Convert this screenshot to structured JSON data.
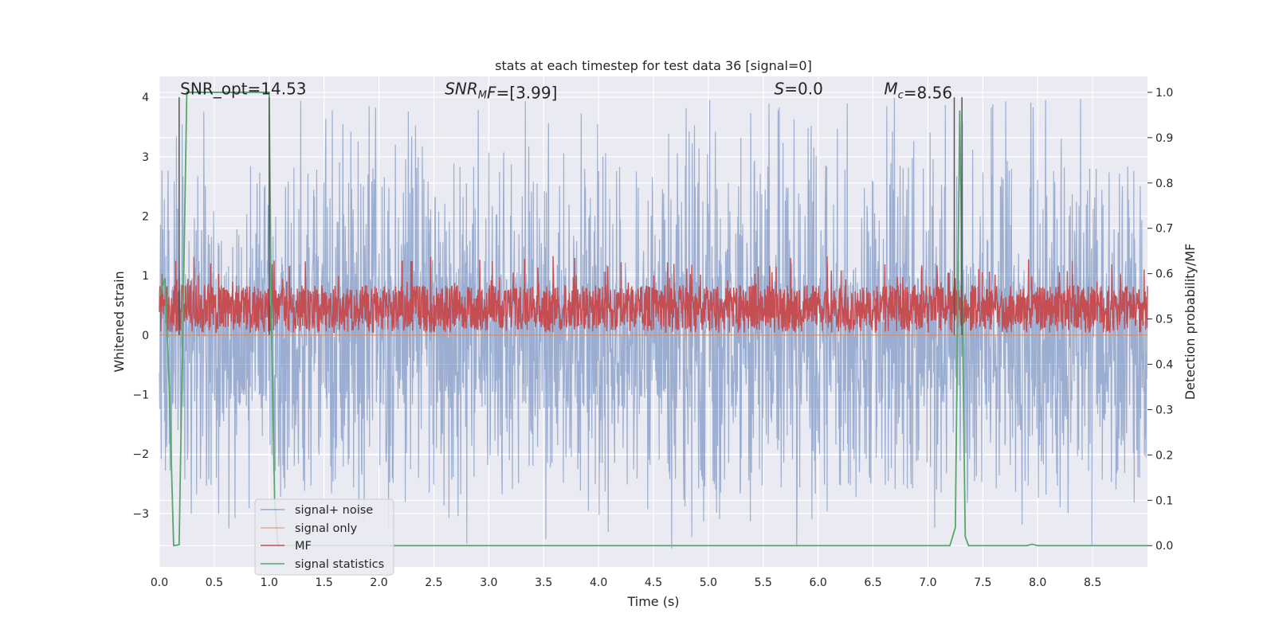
{
  "chart_data": {
    "type": "line",
    "title": "stats at each timestep for test data 36 [signal=0]",
    "xlabel": "Time (s)",
    "ylabel": "Whitened strain",
    "y2label": "Detection probability/MF",
    "xlim": [
      0.0,
      9.0
    ],
    "ylim": [
      -3.9,
      4.35
    ],
    "y2lim": [
      -0.047,
      1.035
    ],
    "xticks": [
      "0.0",
      "0.5",
      "1.0",
      "1.5",
      "2.0",
      "2.5",
      "3.0",
      "3.5",
      "4.0",
      "4.5",
      "5.0",
      "5.5",
      "6.0",
      "6.5",
      "7.0",
      "7.5",
      "8.0",
      "8.5"
    ],
    "yticks": [
      "−3",
      "−2",
      "−1",
      "0",
      "1",
      "2",
      "3",
      "4"
    ],
    "y2ticks": [
      "0.0",
      "0.1",
      "0.2",
      "0.3",
      "0.4",
      "0.5",
      "0.6",
      "0.7",
      "0.8",
      "0.9",
      "1.0"
    ],
    "grid": true,
    "legend_position": "lower-left",
    "annotations": [
      {
        "text": "SNR_opt=14.53",
        "x": 0.19,
        "y": 4.1
      },
      {
        "text": "=[3.99]",
        "prefix": "SNR",
        "sub": "M",
        "mid": "F",
        "x": 2.6,
        "y": 4.1
      },
      {
        "text": "=0.0",
        "prefix": "S",
        "x": 5.6,
        "y": 4.1
      },
      {
        "text": "=8.56",
        "prefix": "M",
        "sub": "c",
        "x": 6.6,
        "y": 4.1
      }
    ],
    "vlines": [
      {
        "x": 0.18,
        "ymin": 0.0,
        "ymax": 4.0
      },
      {
        "x": 1.0,
        "ymin": 0.0,
        "ymax": 4.0
      },
      {
        "x": 7.24,
        "ymin": 0.0,
        "ymax": 4.0
      },
      {
        "x": 7.31,
        "ymin": 0.0,
        "ymax": 4.0
      }
    ],
    "series": [
      {
        "name": "signal+ noise",
        "color": "#4c72b0",
        "axis": "left",
        "band": {
          "low": -1.3,
          "high": 1.2,
          "spike_max": 4.0,
          "spike_min": -3.6
        }
      },
      {
        "name": "signal only",
        "color": "#dd8452",
        "axis": "left",
        "x": [
          0.0,
          9.0
        ],
        "y": [
          0.0,
          0.0
        ]
      },
      {
        "name": "MF",
        "color": "#c44e52",
        "axis": "right",
        "band": {
          "low": 0.47,
          "high": 0.61,
          "spike_max": 0.64
        }
      },
      {
        "name": "signal statistics",
        "color": "#55a868",
        "axis": "right",
        "x": [
          0.0,
          0.05,
          0.09,
          0.13,
          0.18,
          0.25,
          1.0,
          1.02,
          1.05,
          1.08,
          1.12,
          7.2,
          7.25,
          7.29,
          7.34,
          7.37,
          7.9,
          7.95,
          8.0,
          9.0
        ],
        "y": [
          0.55,
          0.59,
          0.35,
          0.0,
          0.002,
          1.0,
          1.0,
          0.5,
          0.1,
          0.0,
          0.0,
          0.0,
          0.04,
          0.96,
          0.02,
          0.0,
          0.0,
          0.003,
          0.0,
          0.0
        ]
      }
    ]
  }
}
